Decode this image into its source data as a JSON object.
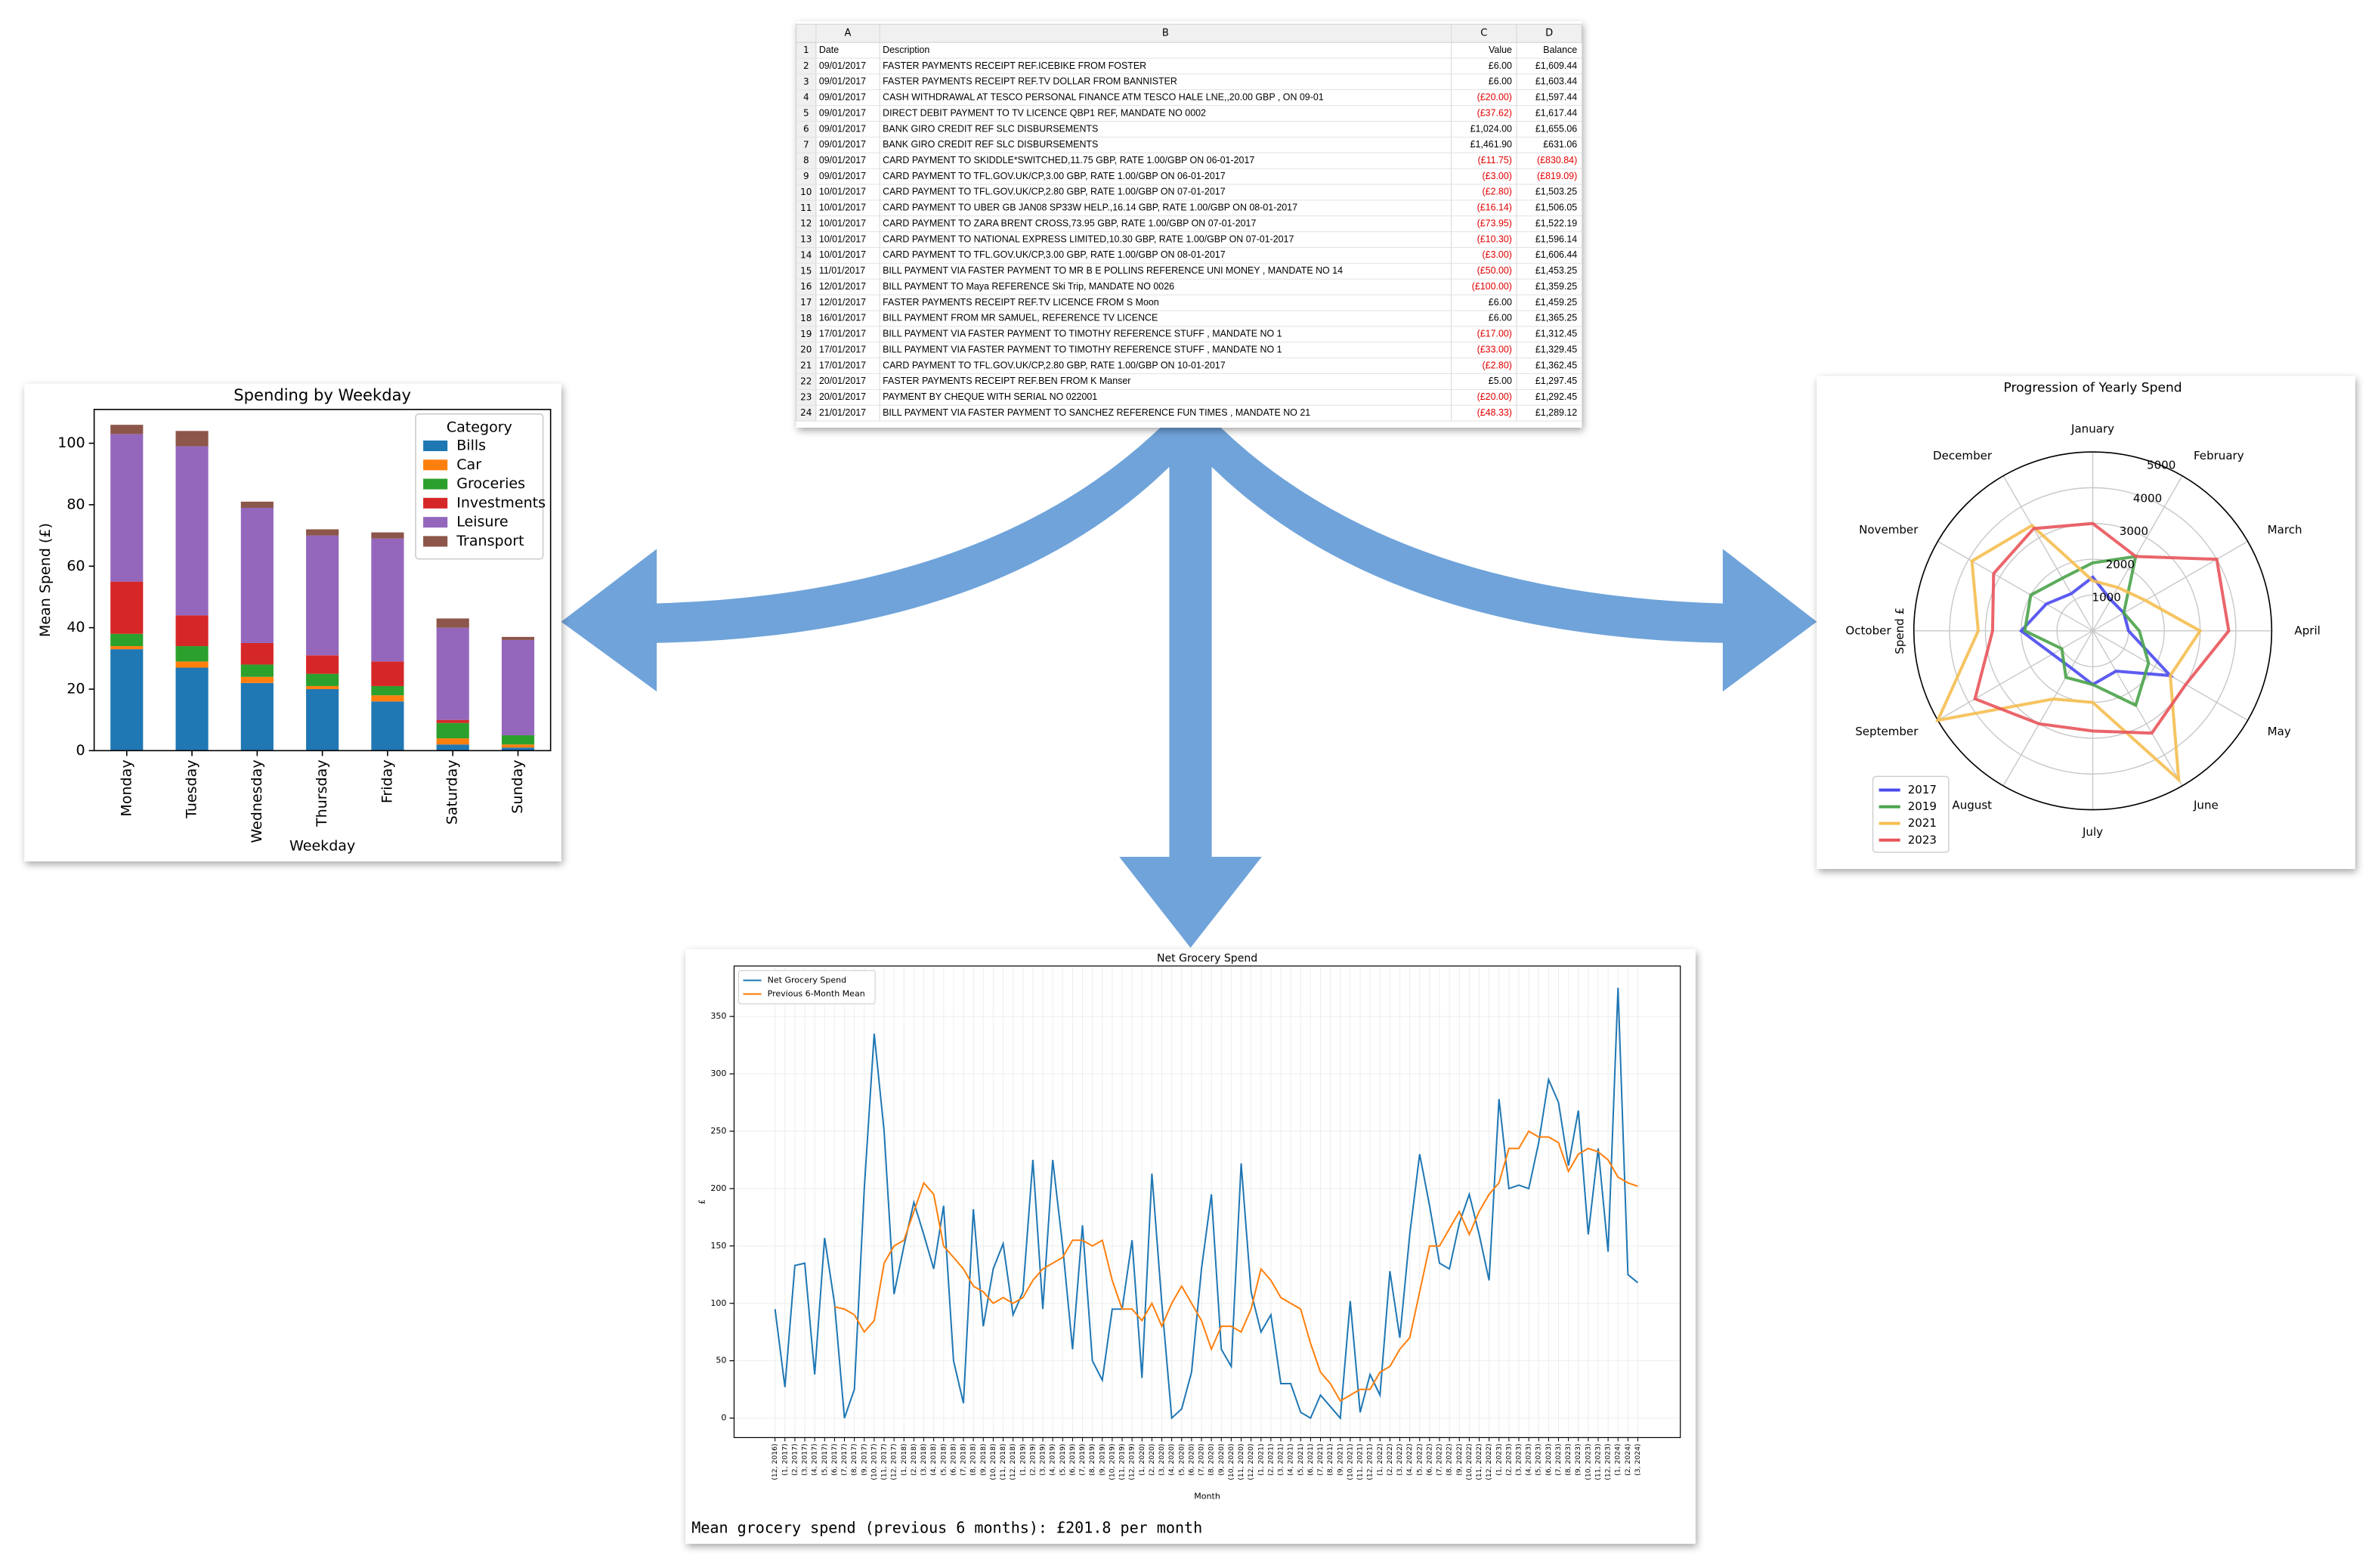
{
  "chart_data": [
    {
      "type": "bar",
      "stacked": true,
      "title": "Spending by Weekday",
      "xlabel": "Weekday",
      "ylabel": "Mean Spend (£)",
      "categories": [
        "Monday",
        "Tuesday",
        "Wednesday",
        "Thursday",
        "Friday",
        "Saturday",
        "Sunday"
      ],
      "series": [
        {
          "name": "Bills",
          "color": "#1f77b4",
          "values": [
            33,
            27,
            22,
            20,
            16,
            2,
            1
          ]
        },
        {
          "name": "Car",
          "color": "#ff7f0e",
          "values": [
            1,
            2,
            2,
            1,
            2,
            2,
            1
          ]
        },
        {
          "name": "Groceries",
          "color": "#2ca02c",
          "values": [
            4,
            5,
            4,
            4,
            3,
            5,
            3
          ]
        },
        {
          "name": "Investments",
          "color": "#d62728",
          "values": [
            17,
            10,
            7,
            6,
            8,
            1,
            0
          ]
        },
        {
          "name": "Leisure",
          "color": "#9467bd",
          "values": [
            48,
            55,
            44,
            39,
            40,
            30,
            31
          ]
        },
        {
          "name": "Transport",
          "color": "#8c564b",
          "values": [
            3,
            5,
            2,
            2,
            2,
            3,
            1
          ]
        }
      ],
      "ylim": [
        0,
        111
      ],
      "yticks": [
        0,
        20,
        40,
        60,
        80,
        100
      ],
      "legend_title": "Category",
      "legend_loc": "upper right"
    },
    {
      "type": "radar",
      "title": "Progression of Yearly Spend",
      "ylabel": "Spend £",
      "categories": [
        "January",
        "February",
        "March",
        "April",
        "May",
        "June",
        "July",
        "August",
        "September",
        "October",
        "November",
        "December"
      ],
      "series": [
        {
          "name": "2017",
          "color": "#4a4af0",
          "values": [
            1500,
            1000,
            1000,
            1000,
            2500,
            1300,
            1500,
            1200,
            1300,
            2000,
            1500,
            1200
          ]
        },
        {
          "name": "2019",
          "color": "#4aa34a",
          "values": [
            1900,
            2400,
            1000,
            1300,
            1800,
            2400,
            1500,
            1500,
            1000,
            1900,
            2000,
            1700
          ]
        },
        {
          "name": "2021",
          "color": "#f5be50",
          "values": [
            1400,
            1400,
            1700,
            3000,
            2500,
            4800,
            2000,
            2200,
            5000,
            3200,
            3900,
            3400
          ]
        },
        {
          "name": "2023",
          "color": "#e8545a",
          "values": [
            3000,
            2400,
            4000,
            3800,
            3000,
            3300,
            2800,
            3000,
            3800,
            2800,
            3200,
            3300
          ]
        }
      ],
      "rlim": [
        0,
        5000
      ],
      "rticks": [
        1000,
        2000,
        3000,
        4000,
        5000
      ],
      "grid": true,
      "legend_loc": "lower left"
    },
    {
      "type": "line",
      "title": "Net Grocery Spend",
      "xlabel": "Month",
      "ylabel": "£",
      "categories": [
        "(12, 2016)",
        "(1, 2017)",
        "(2, 2017)",
        "(3, 2017)",
        "(4, 2017)",
        "(5, 2017)",
        "(6, 2017)",
        "(7, 2017)",
        "(8, 2017)",
        "(9, 2017)",
        "(10, 2017)",
        "(11, 2017)",
        "(12, 2017)",
        "(1, 2018)",
        "(2, 2018)",
        "(3, 2018)",
        "(4, 2018)",
        "(5, 2018)",
        "(6, 2018)",
        "(7, 2018)",
        "(8, 2018)",
        "(9, 2018)",
        "(10, 2018)",
        "(11, 2018)",
        "(12, 2018)",
        "(1, 2019)",
        "(2, 2019)",
        "(3, 2019)",
        "(4, 2019)",
        "(5, 2019)",
        "(6, 2019)",
        "(7, 2019)",
        "(8, 2019)",
        "(9, 2019)",
        "(10, 2019)",
        "(11, 2019)",
        "(12, 2019)",
        "(1, 2020)",
        "(2, 2020)",
        "(3, 2020)",
        "(4, 2020)",
        "(5, 2020)",
        "(6, 2020)",
        "(7, 2020)",
        "(8, 2020)",
        "(9, 2020)",
        "(10, 2020)",
        "(11, 2020)",
        "(12, 2020)",
        "(1, 2021)",
        "(2, 2021)",
        "(3, 2021)",
        "(4, 2021)",
        "(5, 2021)",
        "(6, 2021)",
        "(7, 2021)",
        "(8, 2021)",
        "(9, 2021)",
        "(10, 2021)",
        "(11, 2021)",
        "(12, 2021)",
        "(1, 2022)",
        "(2, 2022)",
        "(3, 2022)",
        "(4, 2022)",
        "(5, 2022)",
        "(6, 2022)",
        "(7, 2022)",
        "(8, 2022)",
        "(9, 2022)",
        "(10, 2022)",
        "(11, 2022)",
        "(12, 2022)",
        "(1, 2023)",
        "(2, 2023)",
        "(3, 2023)",
        "(4, 2023)",
        "(5, 2023)",
        "(6, 2023)",
        "(7, 2023)",
        "(8, 2023)",
        "(9, 2023)",
        "(10, 2023)",
        "(11, 2023)",
        "(12, 2023)",
        "(1, 2024)",
        "(2, 2024)",
        "(3, 2024)"
      ],
      "series": [
        {
          "name": "Net Grocery Spend",
          "color": "#1f77b4",
          "values": [
            95,
            27,
            133,
            135,
            38,
            157,
            100,
            0,
            25,
            200,
            335,
            250,
            108,
            150,
            188,
            160,
            130,
            185,
            50,
            13,
            182,
            80,
            130,
            152,
            90,
            110,
            225,
            95,
            225,
            150,
            60,
            168,
            50,
            33,
            95,
            95,
            155,
            35,
            213,
            100,
            0,
            8,
            40,
            130,
            195,
            60,
            45,
            222,
            110,
            75,
            90,
            30,
            30,
            5,
            0,
            20,
            10,
            0,
            102,
            5,
            38,
            20,
            128,
            70,
            160,
            230,
            185,
            135,
            130,
            170,
            195,
            160,
            120,
            278,
            200,
            203,
            200,
            240,
            295,
            275,
            220,
            268,
            160,
            235,
            145,
            375,
            125,
            118
          ]
        },
        {
          "name": "Previous 6-Month Mean",
          "color": "#ff7f0e",
          "values": [
            null,
            null,
            null,
            null,
            null,
            null,
            97,
            95,
            90,
            75,
            85,
            135,
            150,
            155,
            180,
            205,
            195,
            150,
            140,
            130,
            115,
            110,
            100,
            105,
            100,
            105,
            120,
            130,
            135,
            140,
            155,
            155,
            150,
            155,
            120,
            95,
            95,
            85,
            100,
            80,
            100,
            115,
            100,
            85,
            60,
            80,
            80,
            75,
            95,
            130,
            120,
            105,
            100,
            95,
            65,
            40,
            30,
            15,
            20,
            25,
            25,
            40,
            45,
            60,
            70,
            110,
            150,
            150,
            165,
            180,
            160,
            180,
            195,
            205,
            235,
            235,
            250,
            245,
            245,
            240,
            215,
            230,
            235,
            232,
            225,
            210,
            205,
            202
          ]
        }
      ],
      "ylim": [
        -17,
        394
      ],
      "yticks": [
        0,
        50,
        100,
        150,
        200,
        250,
        300,
        350
      ],
      "grid": true,
      "legend_loc": "upper left",
      "annotation": "Mean grocery spend (previous 6 months): £201.8 per month"
    }
  ],
  "table": {
    "columns": [
      "A",
      "B",
      "C",
      "D"
    ],
    "row_numbers": [
      1,
      2,
      3,
      4,
      5,
      6,
      7,
      8,
      9,
      10,
      11,
      12,
      13,
      14,
      15,
      16,
      17,
      18,
      19,
      20,
      21,
      22,
      23,
      24
    ],
    "rows": [
      [
        "Date",
        "Description",
        "Value",
        "Balance"
      ],
      [
        "09/01/2017",
        "FASTER PAYMENTS RECEIPT REF.ICEBIKE FROM FOSTER",
        "£6.00",
        "£1,609.44"
      ],
      [
        "09/01/2017",
        "FASTER PAYMENTS RECEIPT REF.TV DOLLAR FROM BANNISTER",
        "£6.00",
        "£1,603.44"
      ],
      [
        "09/01/2017",
        "CASH WITHDRAWAL AT TESCO PERSONAL FINANCE ATM TESCO HALE LNE,,20.00 GBP , ON 09-01",
        "(£20.00)",
        "£1,597.44"
      ],
      [
        "09/01/2017",
        "DIRECT DEBIT PAYMENT TO TV LICENCE QBP1 REF, MANDATE NO 0002",
        "(£37.62)",
        "£1,617.44"
      ],
      [
        "09/01/2017",
        "BANK GIRO CREDIT REF SLC DISBURSEMENTS",
        "£1,024.00",
        "£1,655.06"
      ],
      [
        "09/01/2017",
        "BANK GIRO CREDIT REF SLC DISBURSEMENTS",
        "£1,461.90",
        "£631.06"
      ],
      [
        "09/01/2017",
        "CARD PAYMENT TO SKIDDLE*SWITCHED,11.75 GBP, RATE 1.00/GBP ON 06-01-2017",
        "(£11.75)",
        "(£830.84)"
      ],
      [
        "09/01/2017",
        "CARD PAYMENT TO TFL.GOV.UK/CP,3.00 GBP, RATE 1.00/GBP ON 06-01-2017",
        "(£3.00)",
        "(£819.09)"
      ],
      [
        "10/01/2017",
        "CARD PAYMENT TO TFL.GOV.UK/CP,2.80 GBP, RATE 1.00/GBP ON 07-01-2017",
        "(£2.80)",
        "£1,503.25"
      ],
      [
        "10/01/2017",
        "CARD PAYMENT TO UBER GB JAN08 SP33W HELP.,16.14 GBP, RATE 1.00/GBP ON 08-01-2017",
        "(£16.14)",
        "£1,506.05"
      ],
      [
        "10/01/2017",
        "CARD PAYMENT TO ZARA BRENT CROSS,73.95 GBP, RATE 1.00/GBP ON 07-01-2017",
        "(£73.95)",
        "£1,522.19"
      ],
      [
        "10/01/2017",
        "CARD PAYMENT TO NATIONAL EXPRESS LIMITED,10.30 GBP, RATE 1.00/GBP ON 07-01-2017",
        "(£10.30)",
        "£1,596.14"
      ],
      [
        "10/01/2017",
        "CARD PAYMENT TO TFL.GOV.UK/CP,3.00 GBP, RATE 1.00/GBP ON 08-01-2017",
        "(£3.00)",
        "£1,606.44"
      ],
      [
        "11/01/2017",
        "BILL PAYMENT VIA FASTER PAYMENT TO MR B E POLLINS REFERENCE UNI MONEY , MANDATE NO 14",
        "(£50.00)",
        "£1,453.25"
      ],
      [
        "12/01/2017",
        "BILL PAYMENT TO Maya REFERENCE Ski Trip, MANDATE NO 0026",
        "(£100.00)",
        "£1,359.25"
      ],
      [
        "12/01/2017",
        "FASTER PAYMENTS RECEIPT REF.TV LICENCE FROM S Moon",
        "£6.00",
        "£1,459.25"
      ],
      [
        "16/01/2017",
        "BILL PAYMENT FROM MR SAMUEL, REFERENCE TV LICENCE",
        "£6.00",
        "£1,365.25"
      ],
      [
        "17/01/2017",
        "BILL PAYMENT VIA FASTER PAYMENT TO TIMOTHY REFERENCE STUFF , MANDATE NO 1",
        "(£17.00)",
        "£1,312.45"
      ],
      [
        "17/01/2017",
        "BILL PAYMENT VIA FASTER PAYMENT TO TIMOTHY REFERENCE STUFF , MANDATE NO 1",
        "(£33.00)",
        "£1,329.45"
      ],
      [
        "17/01/2017",
        "CARD PAYMENT TO TFL.GOV.UK/CP,2.80 GBP, RATE 1.00/GBP ON 10-01-2017",
        "(£2.80)",
        "£1,362.45"
      ],
      [
        "20/01/2017",
        "FASTER PAYMENTS RECEIPT REF.BEN FROM K Manser",
        "£5.00",
        "£1,297.45"
      ],
      [
        "20/01/2017",
        "PAYMENT BY CHEQUE WITH SERIAL NO 022001",
        "(£20.00)",
        "£1,292.45"
      ],
      [
        "21/01/2017",
        "BILL PAYMENT VIA FASTER PAYMENT TO SANCHEZ REFERENCE FUN TIMES , MANDATE NO 21",
        "(£48.33)",
        "£1,289.12"
      ]
    ]
  }
}
